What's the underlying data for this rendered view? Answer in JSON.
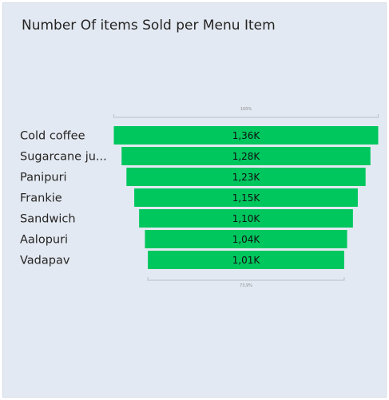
{
  "chart_data": {
    "type": "funnel",
    "title": "Number Of items Sold per Menu Item",
    "categories": [
      "Cold coffee",
      "Sugarcane ju...",
      "Panipuri",
      "Frankie",
      "Sandwich",
      "Aalopuri",
      "Vadapav"
    ],
    "values": [
      1360,
      1280,
      1230,
      1150,
      1100,
      1040,
      1010
    ],
    "data_labels": [
      "1,36K",
      "1,28K",
      "1,23K",
      "1,15K",
      "1,10K",
      "1,04K",
      "1,01K"
    ],
    "top_percent_label": "100%",
    "bottom_percent_label": "73,9%",
    "bar_color": "#00c65e",
    "label_color": "#252423",
    "background": "#e3e9f2"
  }
}
